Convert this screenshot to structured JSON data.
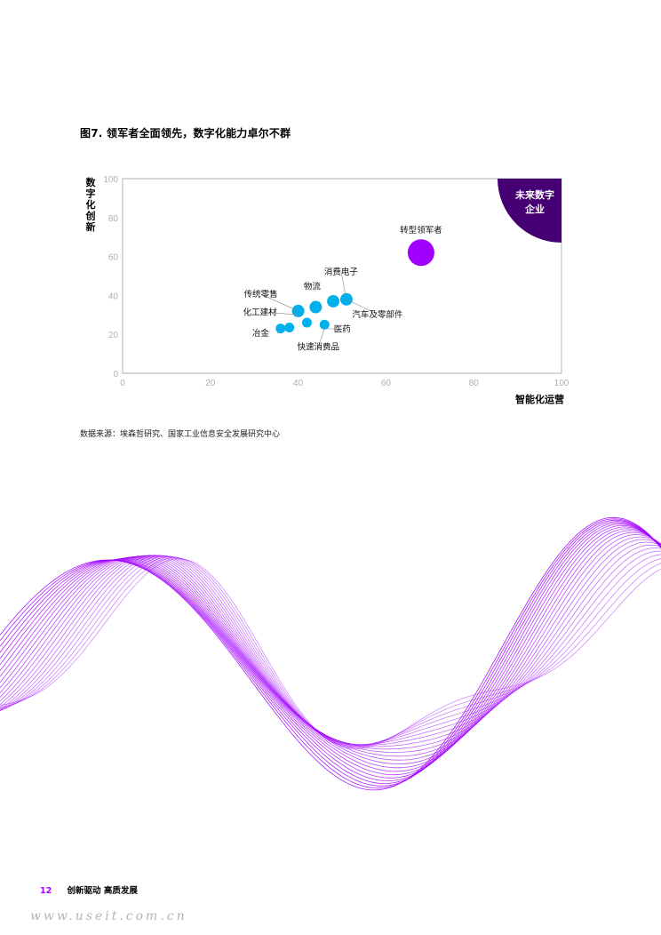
{
  "figure": {
    "title": "图7. 领军者全面领先，数字化能力卓尔不群",
    "source": "数据来源：埃森哲研究、国家工业信息安全发展研究中心"
  },
  "colors": {
    "accent_purple": "#a100ff",
    "dark_purple": "#460073",
    "bubble_blue": "#00b0ec",
    "axis_gray": "#b0b0b0"
  },
  "chart_data": {
    "type": "scatter",
    "title": "图7. 领军者全面领先，数字化能力卓尔不群",
    "xlabel": "智能化运营",
    "ylabel": "数字化创新",
    "xlim": [
      0,
      100
    ],
    "ylim": [
      0,
      100
    ],
    "xticks": [
      0,
      20,
      40,
      60,
      80,
      100
    ],
    "yticks": [
      0,
      20,
      40,
      60,
      80,
      100
    ],
    "grid": false,
    "corner_label": "未来数字企业",
    "corner_label_lines": [
      "未来数字",
      "企业"
    ],
    "points": [
      {
        "label": "转型领军者",
        "x": 68,
        "y": 62,
        "color": "#a100ff",
        "size": "large"
      },
      {
        "label": "消费电子",
        "x": 51,
        "y": 38,
        "color": "#00b0ec",
        "size": "medium"
      },
      {
        "label": "",
        "x": 48,
        "y": 37,
        "color": "#00b0ec",
        "size": "medium"
      },
      {
        "label": "物流",
        "x": 44,
        "y": 34,
        "color": "#00b0ec",
        "size": "medium"
      },
      {
        "label": "传统零售",
        "x": 40,
        "y": 32,
        "color": "#00b0ec",
        "size": "medium"
      },
      {
        "label": "汽车及零部件",
        "x": 51,
        "y": 38,
        "color": "#00b0ec",
        "size": "medium"
      },
      {
        "label": "化工建材",
        "x": 42,
        "y": 26,
        "color": "#00b0ec",
        "size": "small"
      },
      {
        "label": "医药",
        "x": 46,
        "y": 25,
        "color": "#00b0ec",
        "size": "small"
      },
      {
        "label": "快速消费品",
        "x": 46,
        "y": 25,
        "color": "#00b0ec",
        "size": "small"
      },
      {
        "label": "冶金",
        "x": 36,
        "y": 23,
        "color": "#00b0ec",
        "size": "small"
      },
      {
        "label": "",
        "x": 38,
        "y": 23.5,
        "color": "#00b0ec",
        "size": "small"
      }
    ]
  },
  "footer": {
    "page_number": "12",
    "section": "创新驱动 高质发展"
  },
  "watermark": "www.useit.com.cn"
}
